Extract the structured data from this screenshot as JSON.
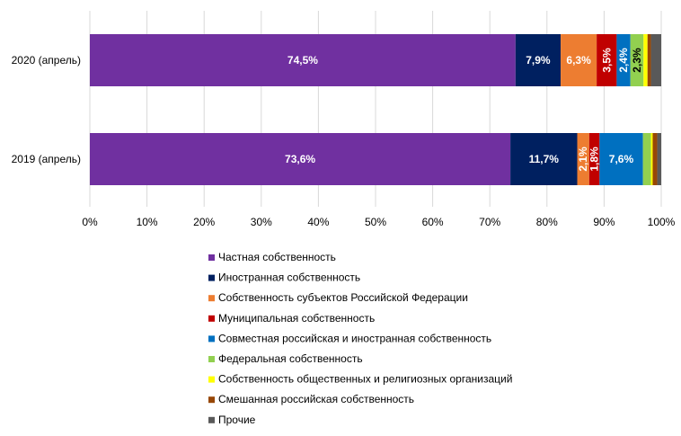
{
  "chart_data": {
    "type": "bar",
    "orientation": "horizontal",
    "stacked": "percent",
    "categories": [
      "2020 (апрель)",
      "2019 (апрель)"
    ],
    "xlim": [
      0,
      100
    ],
    "xticks": [
      "0%",
      "10%",
      "20%",
      "30%",
      "40%",
      "50%",
      "60%",
      "70%",
      "80%",
      "90%",
      "100%"
    ],
    "grid": true,
    "legend_position": "bottom",
    "series": [
      {
        "name": "Частная собственность",
        "color": "#7030A0",
        "values": [
          74.5,
          73.6
        ],
        "labels": [
          "74,5%",
          "73,6%"
        ],
        "label_color": "#ffffff"
      },
      {
        "name": "Иностранная собственность",
        "color": "#002060",
        "values": [
          7.9,
          11.7
        ],
        "labels": [
          "7,9%",
          "11,7%"
        ],
        "label_color": "#ffffff"
      },
      {
        "name": "Собственность субъектов Российской Федерации",
        "color": "#ED7D31",
        "values": [
          6.3,
          2.1
        ],
        "labels": [
          "6,3%",
          "2,1%"
        ],
        "label_color": "#ffffff"
      },
      {
        "name": "Муниципальная собственность",
        "color": "#C00000",
        "values": [
          3.5,
          1.8
        ],
        "labels": [
          "3,5%",
          "1,8%"
        ],
        "label_color": "#ffffff"
      },
      {
        "name": "Совместная российская и иностранная собственность",
        "color": "#0070C0",
        "values": [
          2.4,
          7.6
        ],
        "labels": [
          "2,4%",
          "7,6%"
        ],
        "label_color": "#ffffff"
      },
      {
        "name": "Федеральная собственность",
        "color": "#92D050",
        "values": [
          2.3,
          1.4
        ],
        "labels": [
          "2,3%",
          ""
        ],
        "label_color": "#000000"
      },
      {
        "name": "Собственность общественных и религиозных организаций",
        "color": "#FFFF00",
        "values": [
          0.7,
          0.3
        ],
        "labels": [
          "",
          ""
        ],
        "label_color": "#000000"
      },
      {
        "name": "Смешанная российская собственность",
        "color": "#974706",
        "values": [
          0.6,
          0.8
        ],
        "labels": [
          "",
          ""
        ],
        "label_color": "#ffffff"
      },
      {
        "name": "Прочие",
        "color": "#595959",
        "values": [
          1.8,
          0.7
        ],
        "labels": [
          "",
          ""
        ],
        "label_color": "#ffffff"
      }
    ]
  }
}
